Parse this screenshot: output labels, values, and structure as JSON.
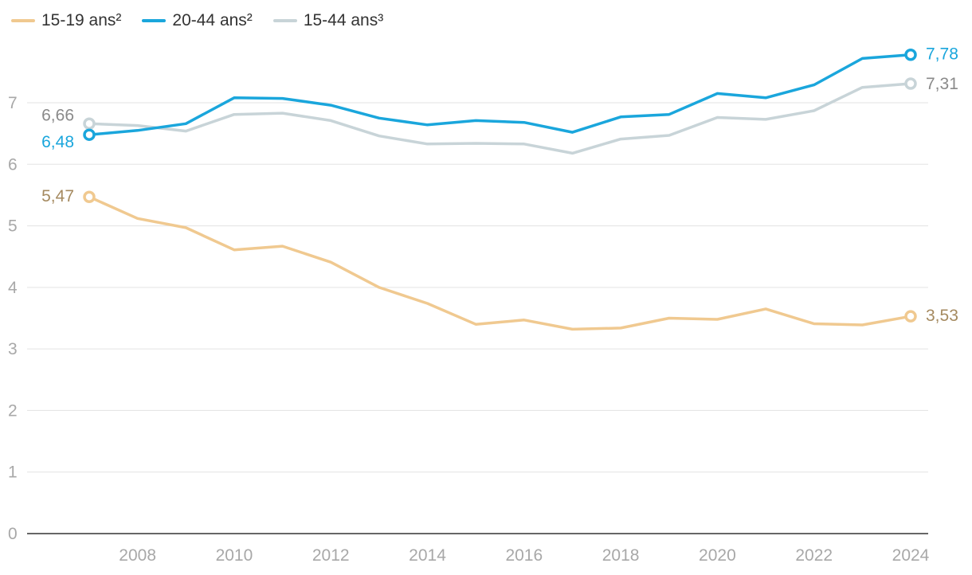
{
  "chart_data": {
    "type": "line",
    "title": "",
    "xlabel": "",
    "ylabel": "",
    "ylim": [
      0,
      7.8
    ],
    "yticks": [
      0,
      1,
      2,
      3,
      4,
      5,
      6,
      7
    ],
    "xticks": [
      2008,
      2010,
      2012,
      2014,
      2016,
      2018,
      2020,
      2022,
      2024
    ],
    "xrange": [
      2005.75,
      2024.35
    ],
    "x": [
      2007,
      2008,
      2009,
      2010,
      2011,
      2012,
      2013,
      2014,
      2015,
      2016,
      2017,
      2018,
      2019,
      2020,
      2021,
      2022,
      2023,
      2024
    ],
    "series": [
      {
        "name": "15-19 ans²",
        "color": "#f0c990",
        "label_color": "#a58a60",
        "values": [
          5.47,
          5.12,
          4.97,
          4.61,
          4.67,
          4.41,
          4.0,
          3.74,
          3.4,
          3.47,
          3.32,
          3.34,
          3.5,
          3.48,
          3.65,
          3.41,
          3.39,
          3.53
        ],
        "start_label": "5,47",
        "end_label": "3,53"
      },
      {
        "name": "20-44 ans²",
        "color": "#1aa6dc",
        "label_color": "#1aa6dc",
        "values": [
          6.48,
          6.55,
          6.66,
          7.08,
          7.07,
          6.96,
          6.75,
          6.64,
          6.71,
          6.68,
          6.52,
          6.77,
          6.81,
          7.15,
          7.08,
          7.29,
          7.72,
          7.78
        ],
        "start_label": "6,48",
        "end_label": "7,78"
      },
      {
        "name": "15-44 ans³",
        "color": "#c8d4d8",
        "label_color": "#8a8a8a",
        "values": [
          6.66,
          6.63,
          6.54,
          6.81,
          6.83,
          6.71,
          6.46,
          6.33,
          6.34,
          6.33,
          6.18,
          6.41,
          6.47,
          6.76,
          6.73,
          6.87,
          7.25,
          7.31
        ],
        "start_label": "6,66",
        "end_label": "7,31"
      }
    ]
  }
}
